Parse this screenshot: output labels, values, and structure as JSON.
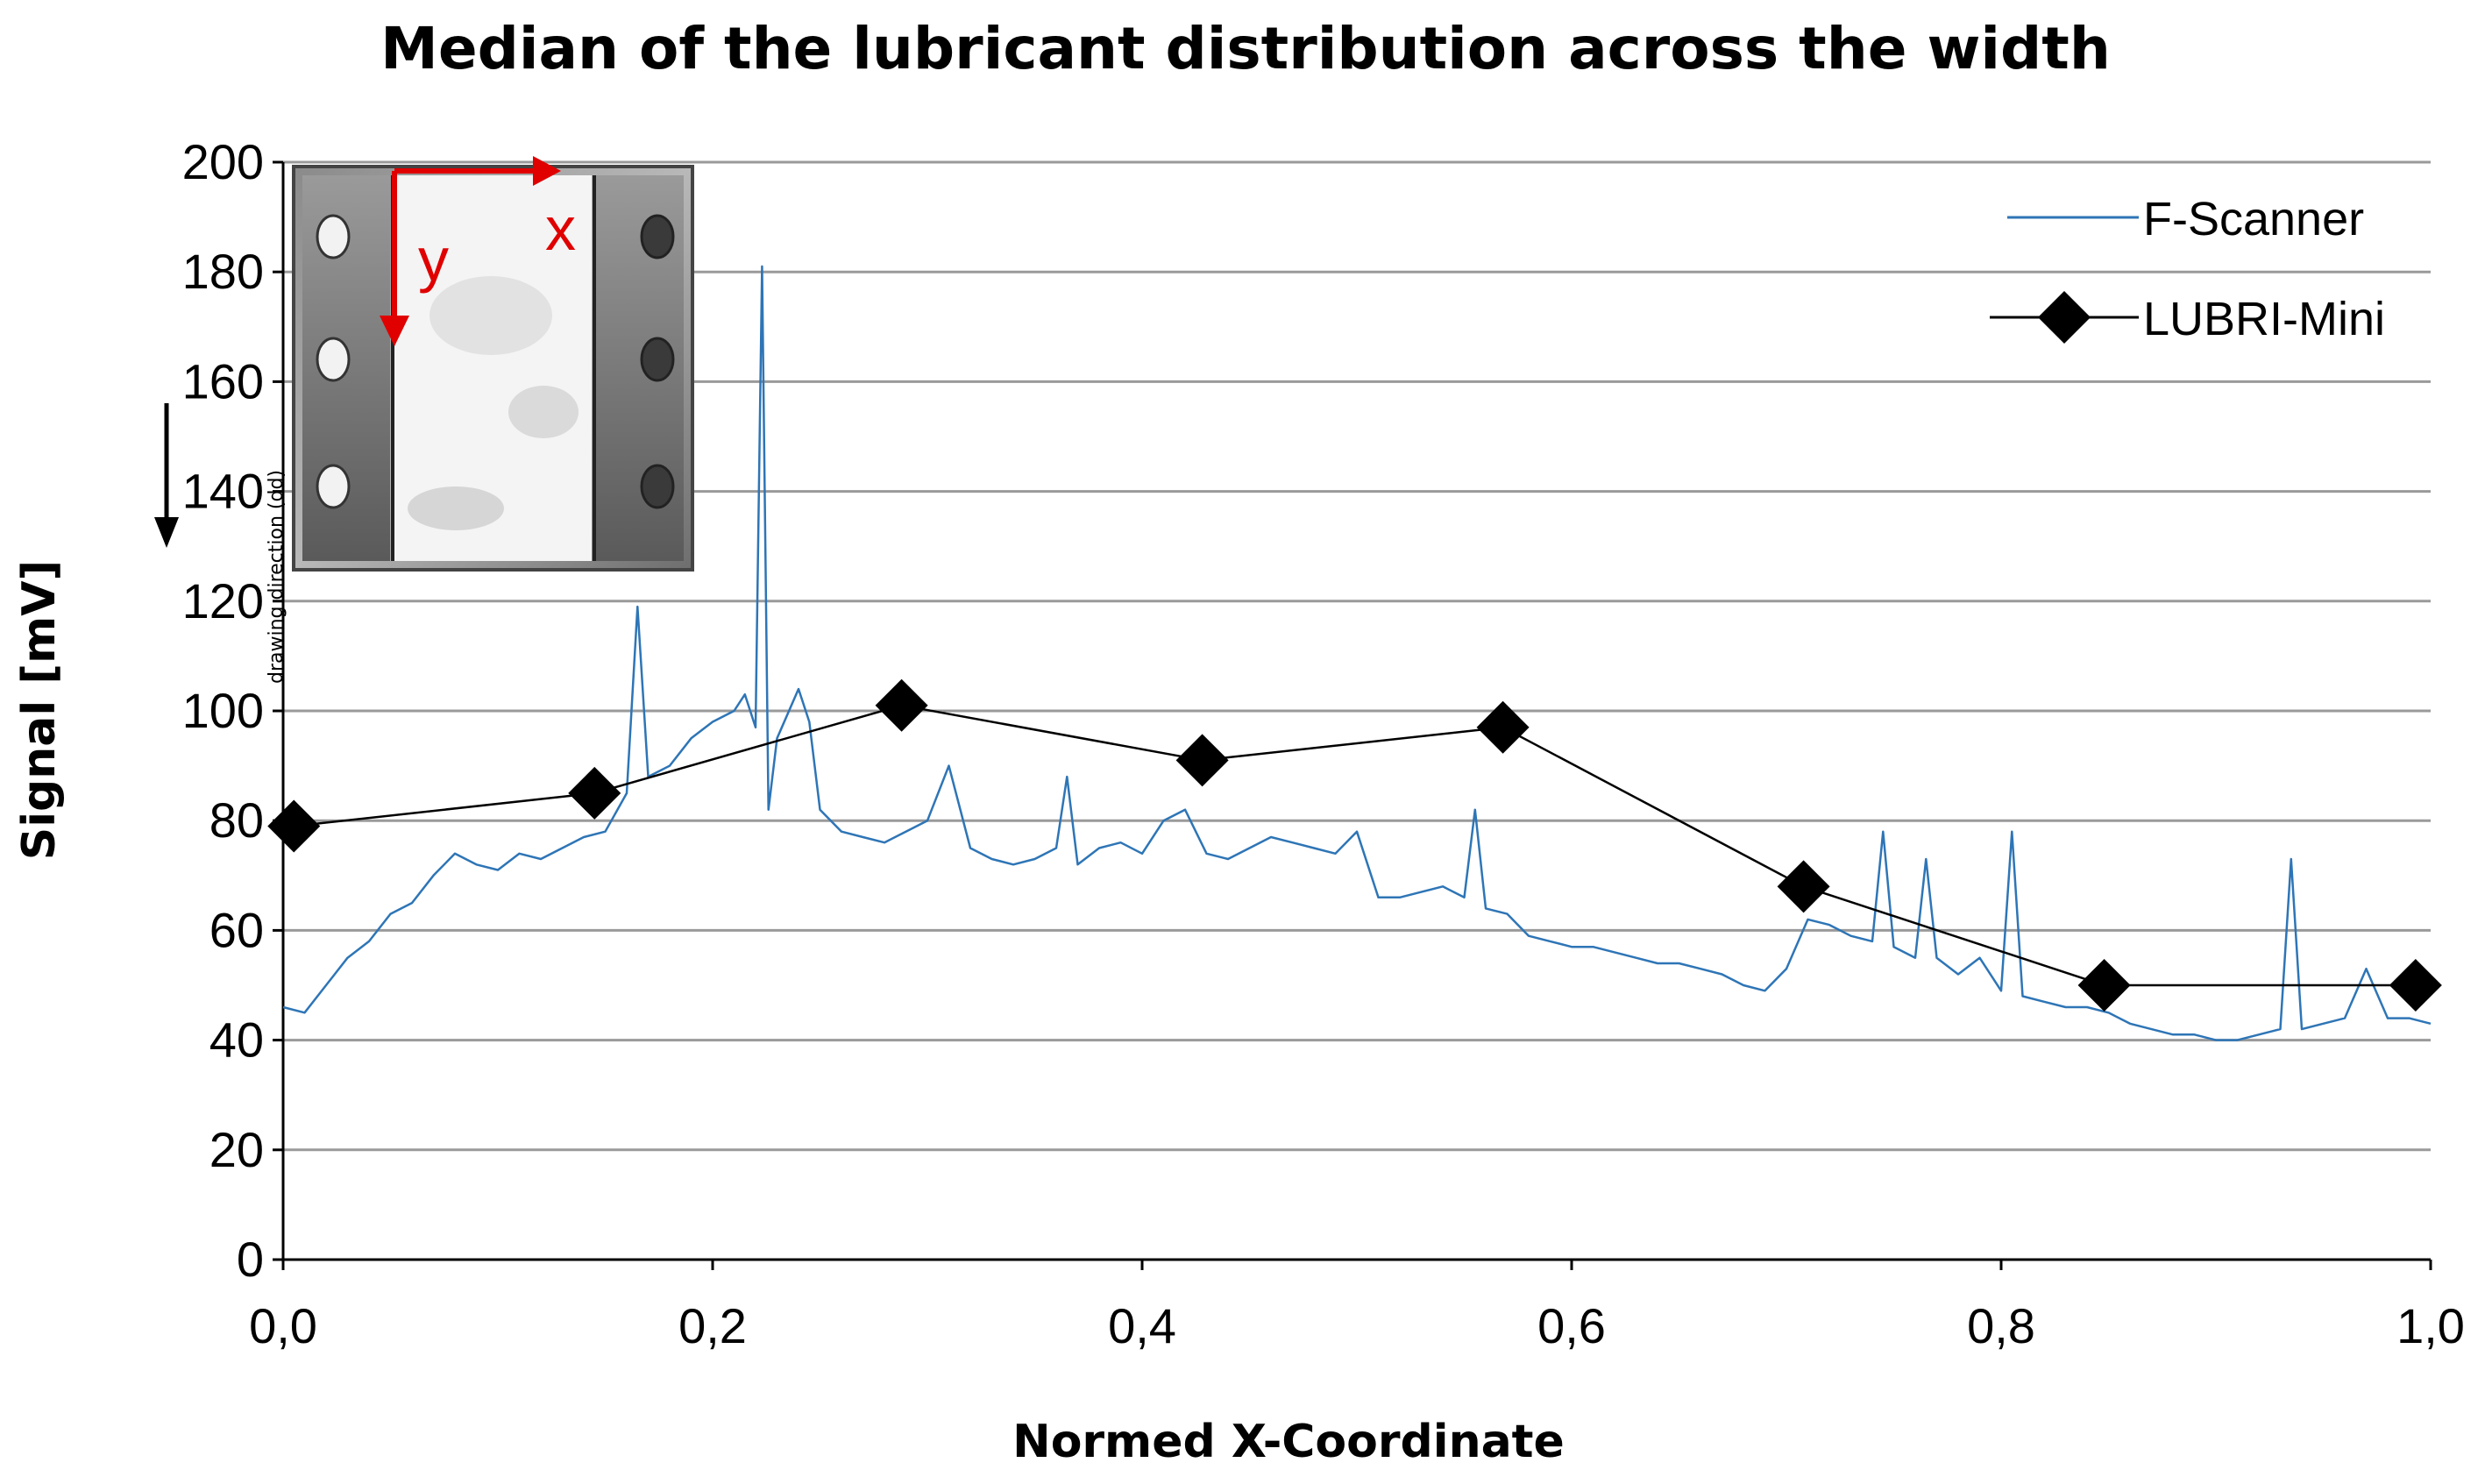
{
  "chart_data": {
    "type": "line",
    "title": "Median of the lubricant distribution across the width",
    "xlabel": "Normed X-Coordinate",
    "ylabel": "Signal [mV]",
    "xlim": [
      0,
      1
    ],
    "ylim": [
      0,
      200
    ],
    "x_ticks": [
      "0,0",
      "0,2",
      "0,4",
      "0,6",
      "0,8",
      "1,0"
    ],
    "y_ticks": [
      "0",
      "20",
      "40",
      "60",
      "80",
      "100",
      "120",
      "140",
      "160",
      "180",
      "200"
    ],
    "grid": "horizontal",
    "legend_position": "top-right",
    "series": [
      {
        "name": "F-Scanner",
        "color": "#2e75b6",
        "marker": "none",
        "x": [
          0.0,
          0.01,
          0.02,
          0.03,
          0.04,
          0.05,
          0.06,
          0.07,
          0.08,
          0.09,
          0.1,
          0.11,
          0.12,
          0.13,
          0.14,
          0.15,
          0.16,
          0.165,
          0.17,
          0.18,
          0.19,
          0.2,
          0.21,
          0.215,
          0.22,
          0.223,
          0.226,
          0.23,
          0.24,
          0.245,
          0.25,
          0.26,
          0.27,
          0.28,
          0.29,
          0.3,
          0.31,
          0.32,
          0.33,
          0.34,
          0.35,
          0.36,
          0.365,
          0.37,
          0.38,
          0.39,
          0.4,
          0.41,
          0.42,
          0.43,
          0.44,
          0.45,
          0.46,
          0.47,
          0.48,
          0.49,
          0.5,
          0.51,
          0.52,
          0.53,
          0.54,
          0.55,
          0.555,
          0.56,
          0.57,
          0.58,
          0.59,
          0.6,
          0.61,
          0.62,
          0.63,
          0.64,
          0.65,
          0.66,
          0.67,
          0.68,
          0.69,
          0.7,
          0.71,
          0.72,
          0.73,
          0.74,
          0.745,
          0.75,
          0.76,
          0.765,
          0.77,
          0.78,
          0.79,
          0.8,
          0.805,
          0.81,
          0.82,
          0.83,
          0.84,
          0.85,
          0.86,
          0.87,
          0.88,
          0.89,
          0.9,
          0.91,
          0.92,
          0.93,
          0.935,
          0.94,
          0.95,
          0.96,
          0.97,
          0.98,
          0.99,
          1.0
        ],
        "y": [
          46,
          45,
          50,
          55,
          58,
          63,
          65,
          70,
          74,
          72,
          71,
          74,
          73,
          75,
          77,
          78,
          85,
          119,
          88,
          90,
          95,
          98,
          100,
          103,
          97,
          181,
          82,
          95,
          104,
          98,
          82,
          78,
          77,
          76,
          78,
          80,
          90,
          75,
          73,
          72,
          73,
          75,
          88,
          72,
          75,
          76,
          74,
          80,
          82,
          74,
          73,
          75,
          77,
          76,
          75,
          74,
          78,
          66,
          66,
          67,
          68,
          66,
          82,
          64,
          63,
          59,
          58,
          57,
          57,
          56,
          55,
          54,
          54,
          53,
          52,
          50,
          49,
          53,
          62,
          61,
          59,
          58,
          78,
          57,
          55,
          73,
          55,
          52,
          55,
          49,
          78,
          48,
          47,
          46,
          46,
          45,
          43,
          42,
          41,
          41,
          40,
          40,
          41,
          42,
          73,
          42,
          43,
          44,
          53,
          44,
          44,
          43
        ]
      },
      {
        "name": "LUBRI-Mini",
        "color": "#000000",
        "marker": "diamond",
        "x": [
          0.005,
          0.145,
          0.288,
          0.428,
          0.568,
          0.708,
          0.848,
          0.993
        ],
        "y": [
          79,
          85,
          101,
          91,
          97,
          68,
          50,
          50
        ]
      }
    ],
    "inset_image": {
      "axis_x_label": "x",
      "axis_y_label": "y",
      "caption": "drawing direction (dd)"
    }
  }
}
